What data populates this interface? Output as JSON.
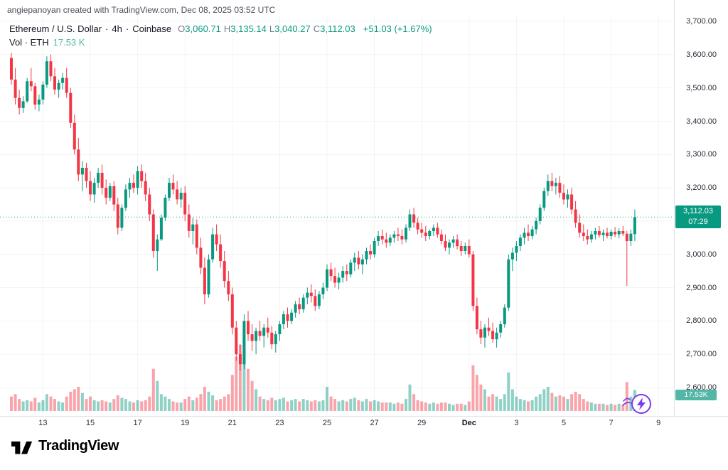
{
  "attribution": "angiepanoyan created with TradingView.com, Dec 08, 2025 03:52 UTC",
  "legend": {
    "symbol": "Ethereum / U.S. Dollar",
    "sep": "·",
    "interval": "4h",
    "exchange": "Coinbase",
    "ohlc": [
      {
        "k": "O",
        "v": "3,060.71"
      },
      {
        "k": "H",
        "v": "3,135.14"
      },
      {
        "k": "L",
        "v": "3,040.27"
      },
      {
        "k": "C",
        "v": "3,112.03"
      }
    ],
    "change": "+51.03 (+1.67%)",
    "volume_label": "Vol · ETH",
    "volume_value": "17.53 K"
  },
  "price_axis": {
    "labels": [
      {
        "text": "3,700.00",
        "value": 3700
      },
      {
        "text": "3,600.00",
        "value": 3600
      },
      {
        "text": "3,500.00",
        "value": 3500
      },
      {
        "text": "3,400.00",
        "value": 3400
      },
      {
        "text": "3,300.00",
        "value": 3300
      },
      {
        "text": "3,200.00",
        "value": 3200
      },
      {
        "text": "3,000.00",
        "value": 3000
      },
      {
        "text": "2,900.00",
        "value": 2900
      },
      {
        "text": "2,800.00",
        "value": 2800
      },
      {
        "text": "2,700.00",
        "value": 2700
      },
      {
        "text": "2,600.00",
        "value": 2600
      }
    ]
  },
  "price_badge": {
    "price": "3,112.03",
    "countdown": "07:29"
  },
  "volume_badge": {
    "text": "17.53K"
  },
  "logo": {
    "text": "TradingView"
  },
  "colors": {
    "up": "#089981",
    "down": "#F23645",
    "vol_up": "rgba(8,153,129,0.45)",
    "vol_down": "rgba(242,54,69,0.45)",
    "teal": "#53b7a8",
    "text": "#131722",
    "muted": "#787b86",
    "grid": "rgba(42,46,57,0.055)",
    "axis_border": "#e0e3eb",
    "boost": "#7c3aed"
  },
  "chart_data": {
    "type": "candlestick",
    "title": "Ethereum / U.S. Dollar · 4h · Coinbase",
    "ylabel": "Price (USD)",
    "ylim": [
      2600,
      3700
    ],
    "last_close": 3112.03,
    "last_volume_k": 17.53,
    "volume_unit": "K ETH",
    "legend_position": "top-left",
    "grid": true,
    "x_ticks": [
      {
        "label": "13",
        "i": 8
      },
      {
        "label": "15",
        "i": 20
      },
      {
        "label": "17",
        "i": 32
      },
      {
        "label": "19",
        "i": 44
      },
      {
        "label": "21",
        "i": 56
      },
      {
        "label": "23",
        "i": 68
      },
      {
        "label": "25",
        "i": 80
      },
      {
        "label": "27",
        "i": 92
      },
      {
        "label": "29",
        "i": 104
      },
      {
        "label": "Dec",
        "i": 116,
        "major": true
      },
      {
        "label": "3",
        "i": 128
      },
      {
        "label": "5",
        "i": 140
      },
      {
        "label": "7",
        "i": 152
      },
      {
        "label": "9",
        "i": 164
      }
    ],
    "candles_format": [
      "open",
      "high",
      "low",
      "close",
      "volume_k"
    ],
    "candles": [
      [
        3590,
        3605,
        3510,
        3525,
        12
      ],
      [
        3525,
        3560,
        3450,
        3470,
        14
      ],
      [
        3470,
        3495,
        3420,
        3440,
        10
      ],
      [
        3440,
        3475,
        3425,
        3460,
        8
      ],
      [
        3460,
        3530,
        3455,
        3520,
        9
      ],
      [
        3520,
        3560,
        3490,
        3505,
        8
      ],
      [
        3505,
        3515,
        3435,
        3450,
        11
      ],
      [
        3450,
        3480,
        3430,
        3465,
        7
      ],
      [
        3465,
        3520,
        3450,
        3510,
        9
      ],
      [
        3510,
        3595,
        3500,
        3580,
        14
      ],
      [
        3580,
        3600,
        3520,
        3535,
        12
      ],
      [
        3535,
        3560,
        3480,
        3495,
        10
      ],
      [
        3495,
        3525,
        3470,
        3515,
        8
      ],
      [
        3515,
        3545,
        3495,
        3530,
        7
      ],
      [
        3530,
        3560,
        3470,
        3485,
        12
      ],
      [
        3485,
        3500,
        3380,
        3395,
        16
      ],
      [
        3395,
        3420,
        3300,
        3315,
        18
      ],
      [
        3315,
        3350,
        3220,
        3240,
        20
      ],
      [
        3240,
        3280,
        3190,
        3260,
        15
      ],
      [
        3260,
        3275,
        3200,
        3220,
        10
      ],
      [
        3220,
        3250,
        3160,
        3180,
        12
      ],
      [
        3180,
        3230,
        3155,
        3215,
        9
      ],
      [
        3215,
        3260,
        3200,
        3245,
        8
      ],
      [
        3245,
        3270,
        3180,
        3200,
        9
      ],
      [
        3200,
        3225,
        3150,
        3170,
        8
      ],
      [
        3170,
        3215,
        3160,
        3205,
        7
      ],
      [
        3205,
        3220,
        3130,
        3150,
        10
      ],
      [
        3150,
        3170,
        3060,
        3080,
        13
      ],
      [
        3080,
        3150,
        3070,
        3140,
        11
      ],
      [
        3140,
        3210,
        3130,
        3195,
        10
      ],
      [
        3195,
        3230,
        3170,
        3215,
        8
      ],
      [
        3215,
        3240,
        3185,
        3200,
        7
      ],
      [
        3200,
        3265,
        3180,
        3250,
        9
      ],
      [
        3250,
        3270,
        3200,
        3220,
        8
      ],
      [
        3220,
        3245,
        3160,
        3180,
        9
      ],
      [
        3180,
        3200,
        3100,
        3120,
        12
      ],
      [
        3120,
        3135,
        2990,
        3010,
        35
      ],
      [
        3010,
        3060,
        2950,
        3045,
        25
      ],
      [
        3045,
        3120,
        3040,
        3110,
        14
      ],
      [
        3110,
        3180,
        3100,
        3170,
        12
      ],
      [
        3170,
        3230,
        3160,
        3215,
        10
      ],
      [
        3215,
        3240,
        3180,
        3195,
        8
      ],
      [
        3195,
        3220,
        3150,
        3165,
        7
      ],
      [
        3165,
        3200,
        3140,
        3185,
        7
      ],
      [
        3185,
        3205,
        3100,
        3120,
        10
      ],
      [
        3120,
        3150,
        3050,
        3070,
        12
      ],
      [
        3070,
        3110,
        3030,
        3090,
        9
      ],
      [
        3090,
        3105,
        3000,
        3020,
        11
      ],
      [
        3020,
        3050,
        2940,
        2960,
        14
      ],
      [
        2960,
        2990,
        2850,
        2880,
        20
      ],
      [
        2880,
        3000,
        2870,
        2985,
        16
      ],
      [
        2985,
        3080,
        2975,
        3060,
        13
      ],
      [
        3060,
        3090,
        3010,
        3030,
        9
      ],
      [
        3030,
        3060,
        2960,
        2980,
        10
      ],
      [
        2980,
        3010,
        2900,
        2920,
        12
      ],
      [
        2920,
        2950,
        2860,
        2880,
        14
      ],
      [
        2880,
        2900,
        2760,
        2780,
        30
      ],
      [
        2780,
        2800,
        2680,
        2700,
        45
      ],
      [
        2700,
        2730,
        2650,
        2670,
        55
      ],
      [
        2670,
        2820,
        2655,
        2800,
        62
      ],
      [
        2800,
        2830,
        2740,
        2760,
        35
      ],
      [
        2760,
        2790,
        2710,
        2740,
        25
      ],
      [
        2740,
        2780,
        2700,
        2770,
        18
      ],
      [
        2770,
        2800,
        2740,
        2755,
        12
      ],
      [
        2755,
        2790,
        2720,
        2780,
        10
      ],
      [
        2780,
        2810,
        2750,
        2765,
        9
      ],
      [
        2765,
        2785,
        2715,
        2730,
        11
      ],
      [
        2730,
        2770,
        2705,
        2760,
        9
      ],
      [
        2760,
        2800,
        2740,
        2790,
        10
      ],
      [
        2790,
        2830,
        2775,
        2820,
        11
      ],
      [
        2820,
        2840,
        2780,
        2800,
        8
      ],
      [
        2800,
        2835,
        2790,
        2825,
        9
      ],
      [
        2825,
        2860,
        2810,
        2850,
        10
      ],
      [
        2850,
        2870,
        2820,
        2835,
        8
      ],
      [
        2835,
        2880,
        2825,
        2870,
        10
      ],
      [
        2870,
        2900,
        2850,
        2885,
        9
      ],
      [
        2885,
        2910,
        2855,
        2875,
        8
      ],
      [
        2875,
        2895,
        2830,
        2845,
        9
      ],
      [
        2845,
        2890,
        2835,
        2880,
        8
      ],
      [
        2880,
        2915,
        2865,
        2900,
        9
      ],
      [
        2900,
        2970,
        2890,
        2955,
        20
      ],
      [
        2955,
        2975,
        2920,
        2935,
        12
      ],
      [
        2935,
        2960,
        2900,
        2915,
        10
      ],
      [
        2915,
        2945,
        2895,
        2930,
        8
      ],
      [
        2930,
        2965,
        2915,
        2950,
        9
      ],
      [
        2950,
        2970,
        2920,
        2940,
        8
      ],
      [
        2940,
        2985,
        2930,
        2975,
        10
      ],
      [
        2975,
        3005,
        2950,
        2990,
        11
      ],
      [
        2990,
        3010,
        2955,
        2970,
        9
      ],
      [
        2970,
        3000,
        2940,
        2985,
        8
      ],
      [
        2985,
        3020,
        2970,
        3010,
        10
      ],
      [
        3010,
        3030,
        2985,
        3000,
        8
      ],
      [
        3000,
        3050,
        2990,
        3040,
        9
      ],
      [
        3040,
        3070,
        3025,
        3055,
        8
      ],
      [
        3055,
        3075,
        3030,
        3045,
        7
      ],
      [
        3045,
        3065,
        3020,
        3035,
        7
      ],
      [
        3035,
        3060,
        3025,
        3050,
        7
      ],
      [
        3050,
        3070,
        3035,
        3060,
        6
      ],
      [
        3060,
        3080,
        3040,
        3055,
        7
      ],
      [
        3055,
        3075,
        3030,
        3045,
        6
      ],
      [
        3045,
        3090,
        3035,
        3080,
        10
      ],
      [
        3080,
        3135,
        3070,
        3120,
        22
      ],
      [
        3120,
        3140,
        3080,
        3095,
        14
      ],
      [
        3095,
        3110,
        3060,
        3075,
        9
      ],
      [
        3075,
        3095,
        3050,
        3065,
        8
      ],
      [
        3065,
        3085,
        3040,
        3055,
        7
      ],
      [
        3055,
        3075,
        3045,
        3070,
        6
      ],
      [
        3070,
        3090,
        3055,
        3080,
        7
      ],
      [
        3080,
        3095,
        3050,
        3060,
        6
      ],
      [
        3060,
        3075,
        3030,
        3040,
        7
      ],
      [
        3040,
        3060,
        3010,
        3020,
        7
      ],
      [
        3020,
        3045,
        3000,
        3035,
        6
      ],
      [
        3035,
        3055,
        3020,
        3045,
        5
      ],
      [
        3045,
        3060,
        3015,
        3025,
        6
      ],
      [
        3025,
        3040,
        2995,
        3010,
        6
      ],
      [
        3010,
        3035,
        3000,
        3025,
        5
      ],
      [
        3025,
        3045,
        2990,
        3000,
        8
      ],
      [
        3000,
        3010,
        2830,
        2845,
        38
      ],
      [
        2845,
        2870,
        2760,
        2775,
        30
      ],
      [
        2775,
        2800,
        2730,
        2750,
        22
      ],
      [
        2750,
        2790,
        2720,
        2780,
        18
      ],
      [
        2780,
        2810,
        2755,
        2770,
        12
      ],
      [
        2770,
        2795,
        2735,
        2745,
        14
      ],
      [
        2745,
        2780,
        2720,
        2765,
        12
      ],
      [
        2765,
        2800,
        2750,
        2790,
        10
      ],
      [
        2790,
        2850,
        2780,
        2840,
        14
      ],
      [
        2840,
        3000,
        2830,
        2985,
        32
      ],
      [
        2985,
        3020,
        2950,
        3005,
        18
      ],
      [
        3005,
        3040,
        2980,
        3025,
        12
      ],
      [
        3025,
        3060,
        3010,
        3050,
        10
      ],
      [
        3050,
        3080,
        3030,
        3065,
        9
      ],
      [
        3065,
        3090,
        3040,
        3055,
        8
      ],
      [
        3055,
        3085,
        3045,
        3075,
        9
      ],
      [
        3075,
        3110,
        3060,
        3100,
        12
      ],
      [
        3100,
        3150,
        3090,
        3140,
        14
      ],
      [
        3140,
        3200,
        3130,
        3190,
        18
      ],
      [
        3190,
        3240,
        3175,
        3220,
        20
      ],
      [
        3220,
        3245,
        3190,
        3205,
        15
      ],
      [
        3205,
        3230,
        3180,
        3215,
        12
      ],
      [
        3215,
        3235,
        3170,
        3185,
        13
      ],
      [
        3185,
        3210,
        3150,
        3165,
        12
      ],
      [
        3165,
        3195,
        3140,
        3180,
        10
      ],
      [
        3180,
        3200,
        3120,
        3135,
        14
      ],
      [
        3135,
        3160,
        3080,
        3095,
        16
      ],
      [
        3095,
        3120,
        3050,
        3065,
        14
      ],
      [
        3065,
        3090,
        3040,
        3055,
        10
      ],
      [
        3055,
        3075,
        3030,
        3045,
        8
      ],
      [
        3045,
        3070,
        3035,
        3060,
        7
      ],
      [
        3060,
        3080,
        3045,
        3070,
        6
      ],
      [
        3070,
        3085,
        3050,
        3058,
        6
      ],
      [
        3058,
        3075,
        3040,
        3065,
        6
      ],
      [
        3065,
        3080,
        3048,
        3055,
        5
      ],
      [
        3055,
        3075,
        3045,
        3068,
        6
      ],
      [
        3068,
        3082,
        3052,
        3060,
        5
      ],
      [
        3060,
        3078,
        3048,
        3070,
        6
      ],
      [
        3070,
        3085,
        3055,
        3062,
        5
      ],
      [
        3062,
        3070,
        2905,
        3040,
        24
      ],
      [
        3040,
        3075,
        3025,
        3062,
        12
      ],
      [
        3060.71,
        3135.14,
        3040.27,
        3112.03,
        17.53
      ]
    ]
  }
}
